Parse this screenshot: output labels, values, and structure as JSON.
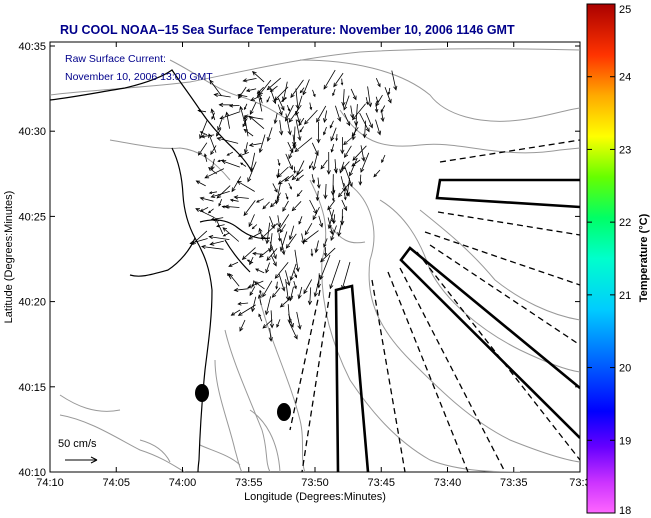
{
  "title": "RU COOL  NOAA–15  Sea Surface Temperature:  November 10, 2006 1146 GMT",
  "current_legend": {
    "line1": "Raw Surface Current:",
    "line2": "November 10, 2006 13:00 GMT"
  },
  "scale_label": "50 cm/s",
  "axes": {
    "xlabel": "Longitude (Degrees:Minutes)",
    "ylabel": "Latitude (Degrees:Minutes)",
    "x_ticks": [
      "74:10",
      "74:05",
      "74:00",
      "73:55",
      "73:50",
      "73:45",
      "73:40",
      "73:35",
      "73:3"
    ],
    "y_ticks": [
      "40:35",
      "40:30",
      "40:25",
      "40:20",
      "40:15",
      "40:10"
    ]
  },
  "colorbar": {
    "label": "Temperature (°C)",
    "ticks": [
      "25",
      "24",
      "23",
      "22",
      "21",
      "20",
      "19",
      "18"
    ],
    "min": 18,
    "max": 25
  },
  "chart_data": {
    "type": "map",
    "lon_range": [
      "74:10",
      "73:30"
    ],
    "lat_range": [
      "40:10",
      "40:35"
    ],
    "features": [
      "coastline",
      "bathymetry contours",
      "surface current vectors",
      "shipping channel outlines",
      "dashed lanes",
      "sampling stations"
    ]
  }
}
